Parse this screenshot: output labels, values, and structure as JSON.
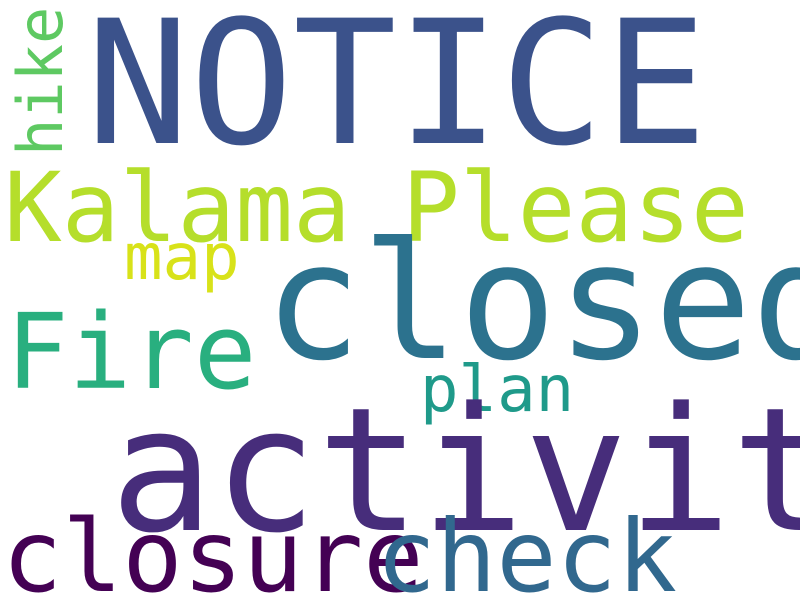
{
  "words": [
    {
      "key": "notice",
      "text": "NOTICE",
      "color": "#3b528b"
    },
    {
      "key": "kalama",
      "text": "Kalama",
      "color": "#b5de2b"
    },
    {
      "key": "please",
      "text": "Please",
      "color": "#b5de2b"
    },
    {
      "key": "closed",
      "text": "closed",
      "color": "#2c728e"
    },
    {
      "key": "fire",
      "text": "Fire",
      "color": "#29af7f"
    },
    {
      "key": "map",
      "text": "map",
      "color": "#d8e219"
    },
    {
      "key": "plan",
      "text": "plan",
      "color": "#1f9a8a"
    },
    {
      "key": "activity",
      "text": "activity",
      "color": "#472d7b"
    },
    {
      "key": "closure",
      "text": "closure",
      "color": "#440154"
    },
    {
      "key": "check",
      "text": "check",
      "color": "#31688e"
    },
    {
      "key": "hike",
      "text": "hike",
      "color": "#5ec962"
    }
  ]
}
